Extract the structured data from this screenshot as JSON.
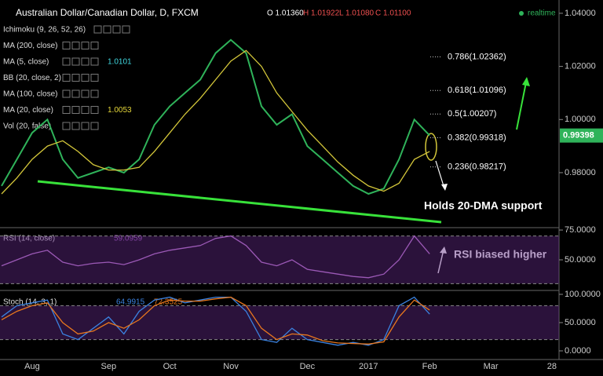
{
  "chart_data": [
    {
      "type": "line",
      "title": "Australian Dollar/Canadian Dollar, D, FXCM",
      "ohlc": [
        "O 1.01360",
        "H 1.01922",
        "L 1.01080",
        "C 1.01100"
      ],
      "realtime": "realtime",
      "indicators": [
        {
          "label": "Ichimoku (9, 26, 52, 26)"
        },
        {
          "label": "MA (200, close)"
        },
        {
          "label": "MA (5, close)",
          "value": 1.0101
        },
        {
          "label": "BB (20, close, 2)"
        },
        {
          "label": "MA (100, close)"
        },
        {
          "label": "MA (20, close)",
          "value": 1.0053
        },
        {
          "label": "Vol (20, false)"
        }
      ],
      "annotation": "Holds 20-DMA support",
      "fib_levels": [
        {
          "label": "0.786(1.02362)",
          "price": 1.02362
        },
        {
          "label": "0.618(1.01096)",
          "price": 1.01096
        },
        {
          "label": "0.5(1.00207)",
          "price": 1.00207
        },
        {
          "label": "0.382(0.99318)",
          "price": 0.99318
        },
        {
          "label": "0.236(0.98217)",
          "price": 0.98217
        }
      ],
      "last_price": 0.99398,
      "categories": [
        null,
        null,
        "Aug",
        null,
        null,
        null,
        null,
        "Sep",
        null,
        null,
        null,
        "Oct",
        null,
        null,
        null,
        "Nov",
        null,
        null,
        null,
        null,
        "Dec",
        null,
        null,
        null,
        "2017",
        null,
        null,
        null,
        "Feb",
        null,
        null,
        null,
        "Mar",
        null,
        null,
        null,
        "28"
      ],
      "series": [
        {
          "color": "#2fb35a",
          "values": [
            0.975,
            0.985,
            0.995,
            1.0,
            0.985,
            0.978,
            0.98,
            0.982,
            0.98,
            0.985,
            0.998,
            1.005,
            1.01,
            1.015,
            1.025,
            1.03,
            1.025,
            1.005,
            0.998,
            1.002,
            0.99,
            0.985,
            0.98,
            0.975,
            0.972,
            0.974,
            0.985,
            1.0,
            0.994,
            null,
            null,
            null,
            null,
            null,
            null,
            null,
            null
          ]
        },
        {
          "color": "#d4c73a",
          "values": [
            0.972,
            0.978,
            0.985,
            0.99,
            0.992,
            0.988,
            0.983,
            0.981,
            0.981,
            0.982,
            0.988,
            0.995,
            1.002,
            1.008,
            1.015,
            1.022,
            1.026,
            1.02,
            1.01,
            1.003,
            0.996,
            0.99,
            0.984,
            0.979,
            0.975,
            0.973,
            0.976,
            0.985,
            0.988,
            null,
            null,
            null,
            null,
            null,
            null,
            null,
            null
          ]
        }
      ],
      "ylim": [
        0.9593,
        1.045
      ],
      "yticks": [
        {
          "value": 1.04,
          "label": "1.04000"
        },
        {
          "value": 1.02,
          "label": "1.02000"
        },
        {
          "value": 1.0,
          "label": "1.00000"
        },
        {
          "value": 0.98,
          "label": "0.98000"
        }
      ]
    },
    {
      "type": "line",
      "title": "RSI (14, close)",
      "value_label": "59.0959",
      "annotation": "RSI biased higher",
      "bands": [
        70,
        30
      ],
      "series": [
        {
          "color": "#9b59b6",
          "values": [
            45,
            50,
            55,
            58,
            48,
            45,
            47,
            48,
            46,
            50,
            55,
            58,
            60,
            62,
            68,
            70,
            62,
            48,
            45,
            50,
            42,
            40,
            38,
            36,
            35,
            38,
            50,
            70,
            55,
            null,
            null,
            null,
            null,
            null,
            null,
            null,
            null
          ]
        }
      ],
      "ylim": [
        24.3,
        77
      ],
      "yticks": [
        {
          "value": 75,
          "label": "75.0000"
        },
        {
          "value": 50,
          "label": "50.0000"
        }
      ]
    },
    {
      "type": "line",
      "title": "Stoch (14, 3, 1)",
      "value_labels": [
        "64.9915",
        "72.3525"
      ],
      "bands": [
        80,
        20
      ],
      "series": [
        {
          "color": "#3b82e0",
          "values": [
            60,
            80,
            85,
            90,
            30,
            20,
            40,
            60,
            30,
            70,
            90,
            95,
            85,
            90,
            95,
            95,
            70,
            20,
            15,
            40,
            20,
            15,
            10,
            15,
            10,
            20,
            80,
            95,
            65,
            null,
            null,
            null,
            null,
            null,
            null,
            null,
            null
          ]
        },
        {
          "color": "#e8771e",
          "values": [
            55,
            70,
            80,
            85,
            50,
            30,
            35,
            50,
            40,
            55,
            80,
            90,
            88,
            88,
            92,
            95,
            80,
            40,
            20,
            30,
            28,
            18,
            14,
            13,
            12,
            16,
            60,
            90,
            72,
            null,
            null,
            null,
            null,
            null,
            null,
            null,
            null
          ]
        }
      ],
      "ylim": [
        -15.3,
        106.9
      ],
      "yticks": [
        {
          "value": 100,
          "label": "100.0000"
        },
        {
          "value": 50,
          "label": "50.0000"
        },
        {
          "value": 0,
          "label": "0.0000"
        }
      ]
    }
  ]
}
